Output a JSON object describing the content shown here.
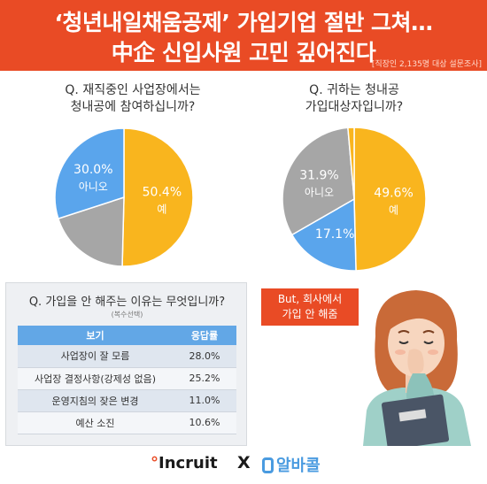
{
  "header": {
    "title_line1": "‘청년내일채움공제’ 가입기업 절반 그쳐…",
    "title_line2": "中企 신입사원 고민 깊어진다",
    "source": "[직장인 2,135명 대상 설문조사]"
  },
  "chart_data": [
    {
      "type": "pie",
      "title": "Q. 재직중인 사업장에서는\n청내공에 참여하십니까?",
      "title_lines": [
        "Q. 재직중인 사업장에서는",
        "청내공에 참여하십니까?"
      ],
      "slices": [
        {
          "label": "예",
          "value": 50.4,
          "value_text": "50.4%",
          "color": "#f9b51e"
        },
        {
          "label": "",
          "value": 19.6,
          "value_text": "",
          "color": "#a6a6a6"
        },
        {
          "label": "아니오",
          "value": 30.0,
          "value_text": "30.0%",
          "color": "#5aa5ec"
        }
      ]
    },
    {
      "type": "pie",
      "title": "Q. 귀하는 청내공\n가입대상자입니까?",
      "title_lines": [
        "Q. 귀하는 청내공",
        "가입대상자입니까?"
      ],
      "slices": [
        {
          "label": "예",
          "value": 49.6,
          "value_text": "49.6%",
          "color": "#f9b51e"
        },
        {
          "label": "",
          "value": 17.1,
          "value_text": "17.1%",
          "color": "#5aa5ec"
        },
        {
          "label": "아니오",
          "value": 31.9,
          "value_text": "31.9%",
          "color": "#a6a6a6"
        },
        {
          "label": "",
          "value": 1.4,
          "value_text": "",
          "color": "#f9b51e"
        }
      ],
      "callout": [
        "But, 회사에서",
        "가입 안 해줌"
      ]
    },
    {
      "type": "table",
      "title": "Q. 가입을 안 해주는 이유는 무엇입니까?",
      "subtitle": "(복수선택)",
      "columns": [
        "보기",
        "응답률"
      ],
      "rows": [
        {
          "label": "사업장이 잘 모름",
          "value": 28.0,
          "value_text": "28.0%"
        },
        {
          "label": "사업장 결정사항(강제성 없음)",
          "value": 25.2,
          "value_text": "25.2%"
        },
        {
          "label": "운영지침의 잦은 변경",
          "value": 11.0,
          "value_text": "11.0%"
        },
        {
          "label": "예산 소진",
          "value": 10.6,
          "value_text": "10.6%"
        }
      ]
    }
  ],
  "footer": {
    "logo1_dot": "°",
    "logo1": "Incruit",
    "separator": "X",
    "logo2": "알바콜"
  },
  "colors": {
    "header_bg": "#e94b25",
    "yes": "#f9b51e",
    "no": "#5aa5ec",
    "other": "#a6a6a6",
    "table_header": "#62a7e6"
  }
}
